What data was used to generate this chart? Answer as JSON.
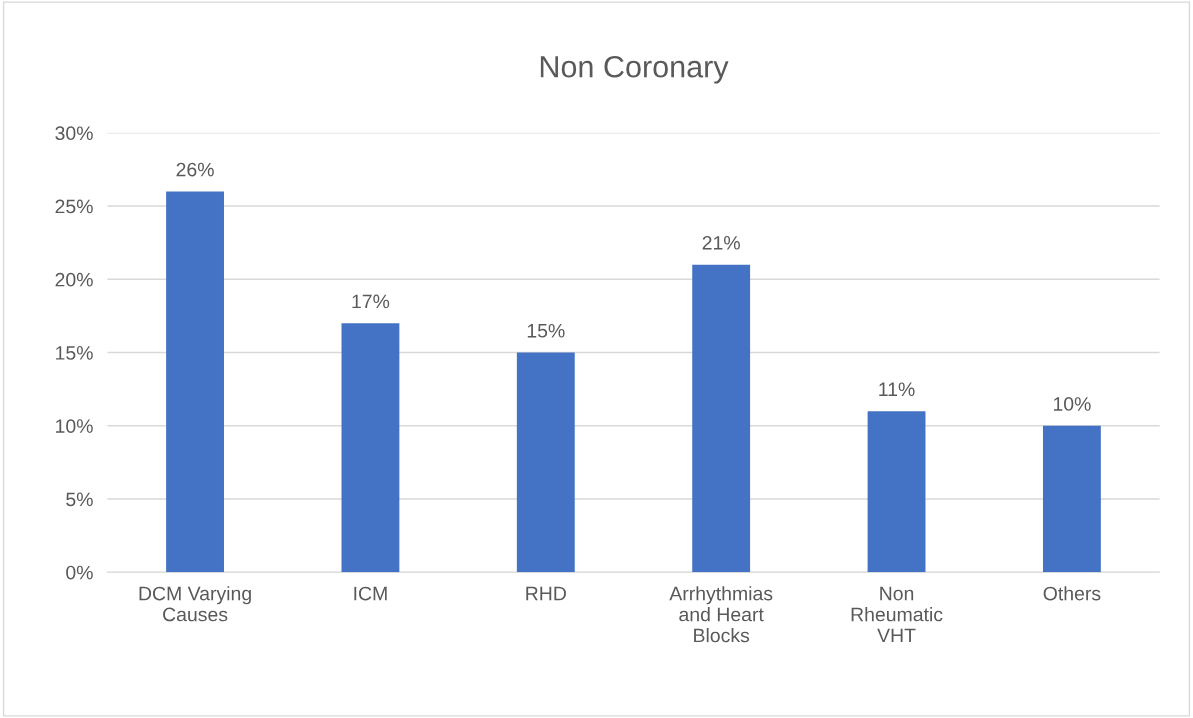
{
  "chart_data": {
    "type": "bar",
    "title": "Non Coronary",
    "categories": [
      "DCM Varying\nCauses",
      "ICM",
      "RHD",
      "Arrhythmias\nand Heart\nBlocks",
      "Non\nRheumatic\nVHT",
      "Others"
    ],
    "values": [
      26,
      17,
      15,
      21,
      11,
      10
    ],
    "value_labels": [
      "26%",
      "17%",
      "15%",
      "21%",
      "11%",
      "10%"
    ],
    "color": "#4472c4",
    "ylim": [
      0,
      30
    ],
    "yticks": [
      {
        "value": 0,
        "label": "0%"
      },
      {
        "value": 5,
        "label": "5%"
      },
      {
        "value": 10,
        "label": "10%"
      },
      {
        "value": 15,
        "label": "15%"
      },
      {
        "value": 20,
        "label": "20%"
      },
      {
        "value": 25,
        "label": "25%"
      },
      {
        "value": 30,
        "label": "30%"
      }
    ],
    "grid": "y",
    "legend": false
  }
}
